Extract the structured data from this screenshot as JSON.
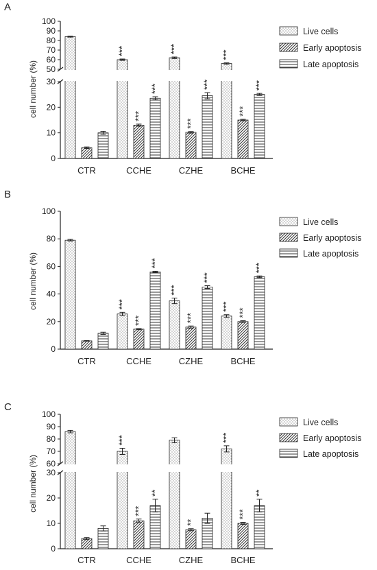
{
  "chart_data": [
    {
      "panel_label": "A",
      "type": "bar",
      "categories": [
        "CTR",
        "CCHE",
        "CZHE",
        "BCHE"
      ],
      "ylabel": "cell number (%)",
      "axis_break": true,
      "lower_ticks": [
        "0",
        "10",
        "20",
        "30"
      ],
      "upper_ticks": [
        "50",
        "60",
        "70",
        "80",
        "90",
        "100"
      ],
      "legend_position": "right",
      "series": [
        {
          "name": "Live cells",
          "pattern": "dots",
          "values": [
            84,
            60,
            62,
            56
          ],
          "errors": [
            0.5,
            0.7,
            0.8,
            0.7
          ],
          "marks": [
            "",
            "***",
            "***",
            "***"
          ]
        },
        {
          "name": "Early apoptosis",
          "pattern": "diagonal",
          "values": [
            4.2,
            13,
            10.2,
            15
          ],
          "errors": [
            0.3,
            0.4,
            0.3,
            0.3
          ],
          "marks": [
            "",
            "***",
            "***",
            "***"
          ]
        },
        {
          "name": "Late apoptosis",
          "pattern": "horizontal",
          "values": [
            10,
            23.5,
            24.5,
            25
          ],
          "errors": [
            0.6,
            0.6,
            1.2,
            0.4
          ],
          "marks": [
            "",
            "***",
            "***",
            "***"
          ]
        }
      ]
    },
    {
      "panel_label": "B",
      "type": "bar",
      "categories": [
        "CTR",
        "CCHE",
        "CZHE",
        "BCHE"
      ],
      "ylabel": "cell number (%)",
      "axis_break": false,
      "ylim": [
        0,
        100
      ],
      "ticks": [
        "0",
        "20",
        "40",
        "60",
        "80",
        "100"
      ],
      "legend_position": "right",
      "series": [
        {
          "name": "Live cells",
          "pattern": "dots",
          "values": [
            79,
            25.5,
            35,
            24
          ],
          "errors": [
            0.6,
            1.2,
            2,
            1
          ],
          "marks": [
            "",
            "***",
            "***",
            "***"
          ]
        },
        {
          "name": "Early apoptosis",
          "pattern": "diagonal",
          "values": [
            6,
            14.5,
            16,
            20
          ],
          "errors": [
            0.2,
            0.4,
            0.8,
            0.6
          ],
          "marks": [
            "",
            "***",
            "***",
            "***"
          ]
        },
        {
          "name": "Late apoptosis",
          "pattern": "horizontal",
          "values": [
            11.5,
            56,
            45,
            52.5
          ],
          "errors": [
            0.8,
            0.5,
            1,
            0.6
          ],
          "marks": [
            "",
            "***",
            "***",
            "***"
          ]
        }
      ]
    },
    {
      "panel_label": "C",
      "type": "bar",
      "categories": [
        "CTR",
        "CCHE",
        "CZHE",
        "BCHE"
      ],
      "ylabel": "cell number (%)",
      "axis_break": true,
      "lower_ticks": [
        "0",
        "10",
        "20",
        "30"
      ],
      "upper_ticks": [
        "60",
        "70",
        "80",
        "90",
        "100"
      ],
      "legend_position": "right",
      "series": [
        {
          "name": "Live cells",
          "pattern": "dots",
          "values": [
            86,
            70,
            79,
            72
          ],
          "errors": [
            1,
            2.5,
            2,
            2.5
          ],
          "marks": [
            "",
            "***",
            "",
            "***"
          ]
        },
        {
          "name": "Early apoptosis",
          "pattern": "diagonal",
          "values": [
            4,
            11,
            7.5,
            10
          ],
          "errors": [
            0.4,
            0.7,
            0.4,
            0.4
          ],
          "marks": [
            "",
            "***",
            "**",
            "***"
          ]
        },
        {
          "name": "Late apoptosis",
          "pattern": "horizontal",
          "values": [
            8,
            17,
            12,
            17
          ],
          "errors": [
            1,
            2.5,
            2,
            2.5
          ],
          "marks": [
            "",
            "**",
            "",
            "**"
          ]
        }
      ]
    }
  ]
}
